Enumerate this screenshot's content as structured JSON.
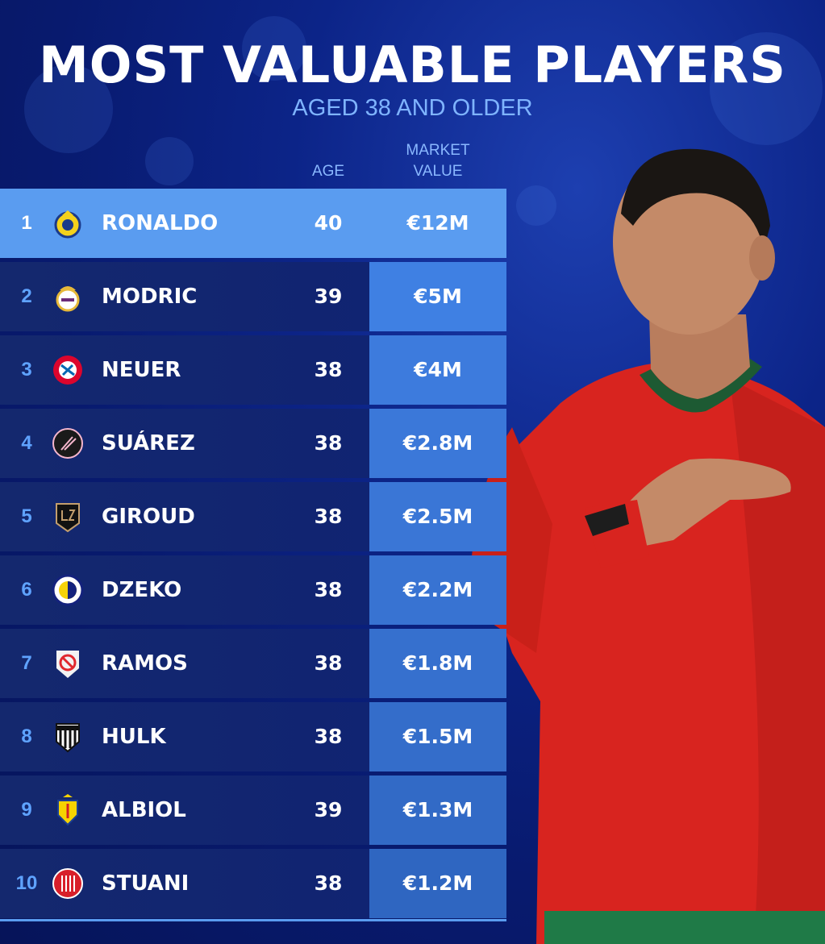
{
  "header": {
    "title": "MOST VALUABLE PLAYERS",
    "subtitle": "AGED 38 AND OLDER"
  },
  "columns": {
    "age": "AGE",
    "market_value_line1": "MARKET",
    "market_value_line2": "VALUE"
  },
  "colors": {
    "background": "#0c2488",
    "highlight_row": "#5a9cf0",
    "value_cell": "#3e7ce0",
    "rank_text": "#5fa3ff",
    "subtitle": "#7fb4ff",
    "jersey": "#d8241f"
  },
  "players": [
    {
      "rank": "1",
      "name": "RONALDO",
      "age": "40",
      "value": "€12M",
      "club_icon": "al-nassr-crest-icon"
    },
    {
      "rank": "2",
      "name": "MODRIC",
      "age": "39",
      "value": "€5M",
      "club_icon": "real-madrid-crest-icon"
    },
    {
      "rank": "3",
      "name": "NEUER",
      "age": "38",
      "value": "€4M",
      "club_icon": "bayern-crest-icon"
    },
    {
      "rank": "4",
      "name": "SUÁREZ",
      "age": "38",
      "value": "€2.8M",
      "club_icon": "inter-miami-crest-icon"
    },
    {
      "rank": "5",
      "name": "GIROUD",
      "age": "38",
      "value": "€2.5M",
      "club_icon": "lafc-crest-icon"
    },
    {
      "rank": "6",
      "name": "DZEKO",
      "age": "38",
      "value": "€2.2M",
      "club_icon": "fenerbahce-crest-icon"
    },
    {
      "rank": "7",
      "name": "RAMOS",
      "age": "38",
      "value": "€1.8M",
      "club_icon": "no-club-icon"
    },
    {
      "rank": "8",
      "name": "HULK",
      "age": "38",
      "value": "€1.5M",
      "club_icon": "atletico-mineiro-crest-icon"
    },
    {
      "rank": "9",
      "name": "ALBIOL",
      "age": "39",
      "value": "€1.3M",
      "club_icon": "villarreal-crest-icon"
    },
    {
      "rank": "10",
      "name": "STUANI",
      "age": "38",
      "value": "€1.2M",
      "club_icon": "girona-crest-icon"
    }
  ]
}
